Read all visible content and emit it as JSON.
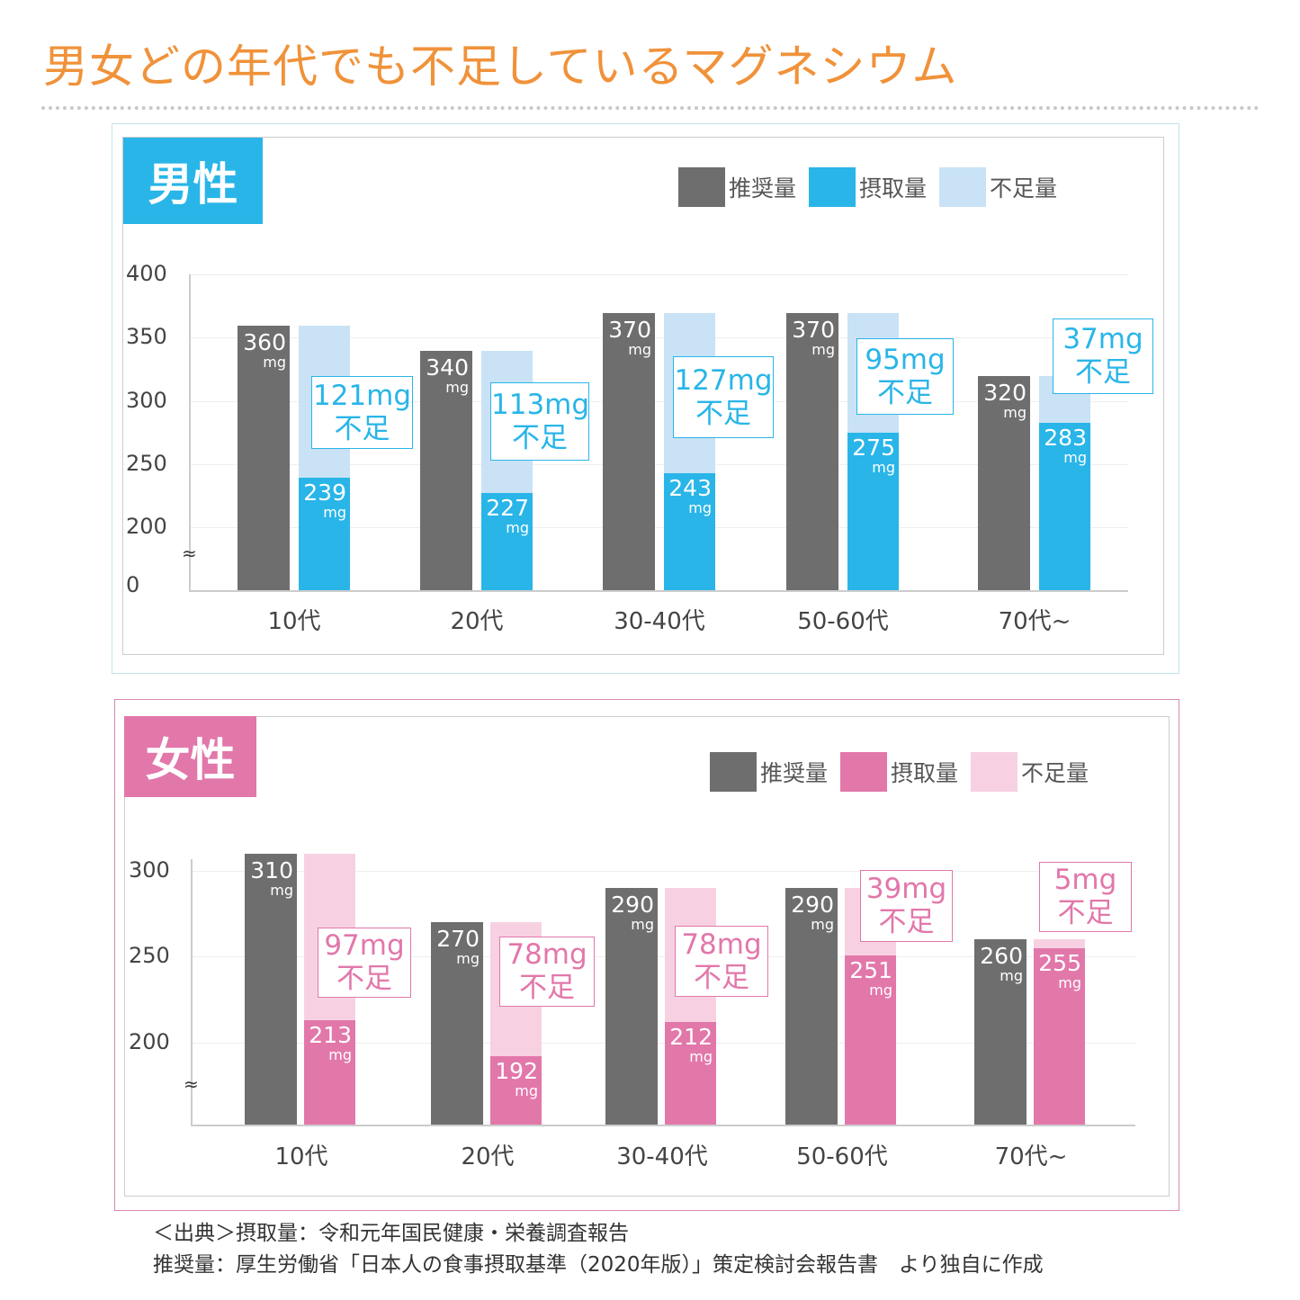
{
  "title": "男女どの年代でも不足しているマグネシウム",
  "source": {
    "line1": "＜出典＞摂取量：令和元年国民健康・栄養調査報告",
    "line2": "推奨量：厚生労働省「日本人の食事摂取基準（2020年版）」策定検討会報告書　より独自に作成"
  },
  "colors": {
    "title": "#f0923a",
    "recommended": "#6e6e6e",
    "male_intake": "#29b5e8",
    "male_short": "#c9e2f5",
    "female_intake": "#e277aa",
    "female_short": "#f7d1e2"
  },
  "chart_data": [
    {
      "type": "bar",
      "panel_label": "男性",
      "legend": [
        "推奨量",
        "摂取量",
        "不足量"
      ],
      "categories": [
        "10代",
        "20代",
        "30-40代",
        "50-60代",
        "70代~"
      ],
      "yticks": [
        "400",
        "350",
        "300",
        "250",
        "200",
        "0"
      ],
      "axis_break": "≈",
      "ylim": [
        0,
        400
      ],
      "unit": "mg",
      "series": [
        {
          "name": "推奨量",
          "values": [
            360,
            340,
            370,
            370,
            320
          ]
        },
        {
          "name": "摂取量",
          "values": [
            239,
            227,
            243,
            275,
            283
          ]
        },
        {
          "name": "不足量",
          "values": [
            121,
            113,
            127,
            95,
            37
          ]
        }
      ],
      "shortage_suffix": "不足"
    },
    {
      "type": "bar",
      "panel_label": "女性",
      "legend": [
        "推奨量",
        "摂取量",
        "不足量"
      ],
      "categories": [
        "10代",
        "20代",
        "30-40代",
        "50-60代",
        "70代~"
      ],
      "yticks": [
        "300",
        "250",
        "200"
      ],
      "axis_break": "≈",
      "unit": "mg",
      "series": [
        {
          "name": "推奨量",
          "values": [
            310,
            270,
            290,
            290,
            260
          ]
        },
        {
          "name": "摂取量",
          "values": [
            213,
            192,
            212,
            251,
            255
          ]
        },
        {
          "name": "不足量",
          "values": [
            97,
            78,
            78,
            39,
            5
          ]
        }
      ],
      "shortage_suffix": "不足"
    }
  ]
}
